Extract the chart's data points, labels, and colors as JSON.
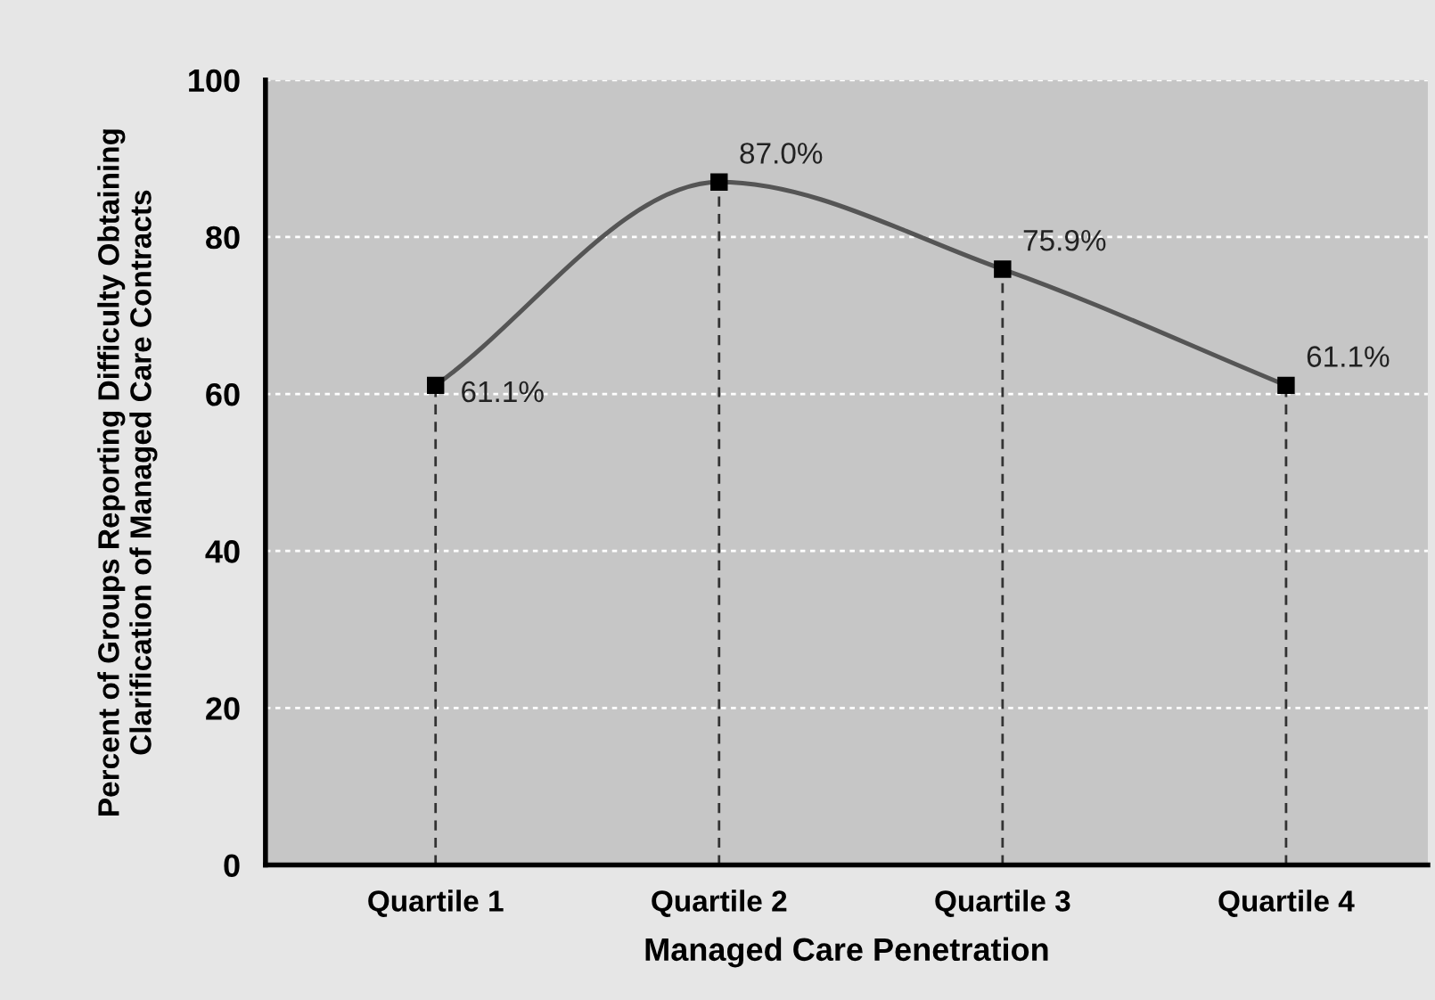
{
  "chart_data": {
    "type": "line",
    "xlabel": "Managed Care Penetration",
    "ylabel": "Percent of Groups Reporting Difficulty Obtaining\nClarification of Managed Care Contracts",
    "categories": [
      "Quartile 1",
      "Quartile 2",
      "Quartile 3",
      "Quartile 4"
    ],
    "series": [
      {
        "color": "#555555",
        "values": [
          61.1,
          87.0,
          75.9,
          61.1
        ],
        "value_labels": [
          "61.1%",
          "87.0%",
          "75.9%",
          "61.1%"
        ]
      }
    ],
    "ylim": [
      0,
      100
    ],
    "yticks": [
      0,
      20,
      40,
      60,
      80,
      100
    ],
    "grid": "y",
    "marker": "square",
    "line_style": "solid",
    "legend": false,
    "ref_lines": [
      {
        "axis": "x",
        "value": "Quartile 1",
        "color": "#333333",
        "line_style": "dashed"
      },
      {
        "axis": "x",
        "value": "Quartile 2",
        "color": "#333333",
        "line_style": "dashed"
      },
      {
        "axis": "x",
        "value": "Quartile 3",
        "color": "#333333",
        "line_style": "dashed"
      },
      {
        "axis": "x",
        "value": "Quartile 4",
        "color": "#333333",
        "line_style": "dashed"
      }
    ]
  }
}
